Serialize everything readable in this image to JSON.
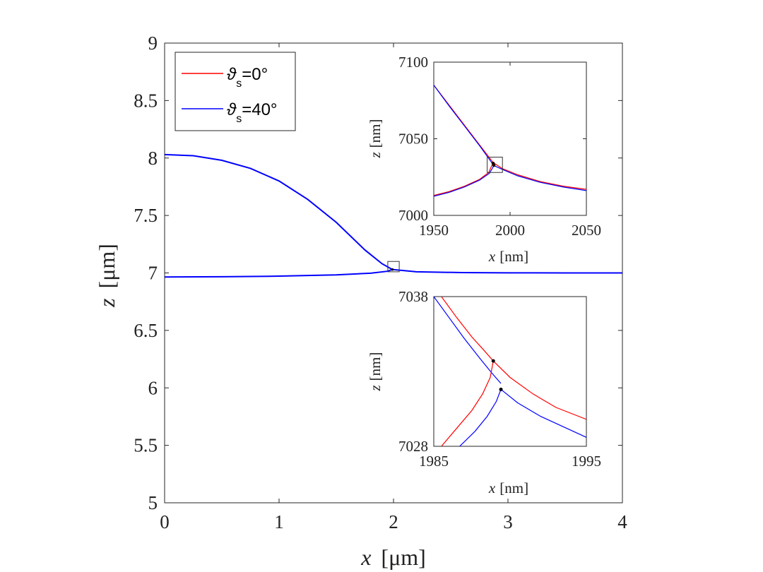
{
  "chart_data": [
    {
      "id": "main",
      "type": "line",
      "xlabel_var": "x",
      "xlabel_unit": "[μm]",
      "ylabel_var": "z",
      "ylabel_unit": "[μm]",
      "xlim": [
        0,
        4
      ],
      "ylim": [
        5,
        9
      ],
      "xticks": [
        "0",
        "1",
        "2",
        "3",
        "4"
      ],
      "yticks": [
        "5",
        "5.5",
        "6",
        "6.5",
        "7",
        "7.5",
        "8",
        "8.5",
        "9"
      ],
      "legend": {
        "placement": "top-left",
        "entries": [
          {
            "symbol": "ϑ",
            "sub": "s",
            "text": "=0°",
            "color": "#ff0000"
          },
          {
            "symbol": "ϑ",
            "sub": "s",
            "text": "=40°",
            "color": "#0000ff"
          }
        ]
      },
      "series": [
        {
          "name": "cap",
          "color": "#0000ff",
          "x": [
            0,
            0.25,
            0.5,
            0.75,
            1.0,
            1.25,
            1.5,
            1.75,
            1.9,
            1.99
          ],
          "y": [
            8.03,
            8.02,
            7.98,
            7.91,
            7.8,
            7.64,
            7.44,
            7.2,
            7.08,
            7.03
          ]
        },
        {
          "name": "base-left",
          "color": "#0000ff",
          "x": [
            0,
            0.5,
            1.0,
            1.5,
            1.8,
            1.95,
            1.99
          ],
          "y": [
            6.965,
            6.967,
            6.972,
            6.983,
            6.998,
            7.015,
            7.03
          ]
        },
        {
          "name": "base-right",
          "color": "#0000ff",
          "x": [
            1.99,
            2.2,
            2.6,
            3.0,
            3.5,
            4.0
          ],
          "y": [
            7.03,
            7.01,
            7.003,
            7.001,
            7.0,
            7.0
          ]
        }
      ],
      "box": {
        "x": [
          1.95,
          2.05
        ],
        "y": [
          7.01,
          7.1
        ]
      }
    },
    {
      "id": "inset1",
      "type": "line",
      "xlabel_var": "x",
      "xlabel_unit": "[nm]",
      "ylabel_var": "z",
      "ylabel_unit": "[nm]",
      "xlim": [
        1950,
        2050
      ],
      "ylim": [
        7000,
        7100
      ],
      "xticks": [
        "1950",
        "2000",
        "2050"
      ],
      "yticks": [
        "7000",
        "7050",
        "7100"
      ],
      "series": [
        {
          "name": "cap-0",
          "color": "#ff0000",
          "x": [
            1950,
            1960,
            1970,
            1980,
            1988.9
          ],
          "y": [
            7085,
            7072,
            7059,
            7046,
            7034.5
          ]
        },
        {
          "name": "cap-40",
          "color": "#0000ff",
          "x": [
            1950,
            1960,
            1970,
            1980,
            1989.4
          ],
          "y": [
            7085,
            7071.5,
            7058.5,
            7045.5,
            7032.5
          ]
        },
        {
          "name": "sub-right-0",
          "color": "#ff0000",
          "x": [
            1988.9,
            1995,
            2005,
            2020,
            2035,
            2050
          ],
          "y": [
            7034.5,
            7030.5,
            7026.5,
            7022,
            7019,
            7017
          ]
        },
        {
          "name": "sub-right-40",
          "color": "#0000ff",
          "x": [
            1989.4,
            1995,
            2005,
            2020,
            2035,
            2050
          ],
          "y": [
            7032.5,
            7030,
            7025.8,
            7021.5,
            7018.5,
            7016.2
          ]
        },
        {
          "name": "sub-left-0",
          "color": "#ff0000",
          "x": [
            1950,
            1960,
            1970,
            1980,
            1986,
            1988.9
          ],
          "y": [
            7013,
            7015.5,
            7019,
            7023.5,
            7028,
            7034.5
          ]
        },
        {
          "name": "sub-left-40",
          "color": "#0000ff",
          "x": [
            1950,
            1960,
            1970,
            1980,
            1986.5,
            1989.4
          ],
          "y": [
            7012.5,
            7015,
            7018.5,
            7023,
            7027.5,
            7032.5
          ]
        }
      ],
      "points": [
        {
          "x": 1988.9,
          "y": 7034.0
        },
        {
          "x": 1989.4,
          "y": 7032.7
        }
      ],
      "box": {
        "x": [
          1985,
          1995
        ],
        "y": [
          7028,
          7038
        ]
      }
    },
    {
      "id": "inset2",
      "type": "line",
      "xlabel_var": "x",
      "xlabel_unit": "[nm]",
      "ylabel_var": "z",
      "ylabel_unit": "[nm]",
      "xlim": [
        1985,
        1995
      ],
      "ylim": [
        7028,
        7038
      ],
      "xticks": [
        "1985",
        "1995"
      ],
      "yticks": [
        "7028",
        "7038"
      ],
      "series": [
        {
          "name": "cap-0",
          "color": "#ff0000",
          "x": [
            1985.5,
            1986.5,
            1987.5,
            1988.3,
            1988.9
          ],
          "y": [
            7038,
            7036.6,
            7035.3,
            7034.4,
            7033.7
          ]
        },
        {
          "name": "cap-40",
          "color": "#0000ff",
          "x": [
            1985,
            1986,
            1987,
            1988,
            1988.8,
            1989.4
          ],
          "y": [
            7038,
            7036.6,
            7035.2,
            7033.9,
            7032.9,
            7032.2
          ]
        },
        {
          "name": "sub-right-0",
          "color": "#ff0000",
          "x": [
            1988.9,
            1990,
            1991.5,
            1993,
            1995
          ],
          "y": [
            7033.7,
            7032.6,
            7031.5,
            7030.6,
            7029.8
          ]
        },
        {
          "name": "sub-right-40",
          "color": "#0000ff",
          "x": [
            1989.4,
            1990.5,
            1992,
            1993.5,
            1995
          ],
          "y": [
            7031.8,
            7030.9,
            7030.0,
            7029.3,
            7028.6
          ]
        },
        {
          "name": "sub-left-0",
          "color": "#ff0000",
          "x": [
            1985.5,
            1986.5,
            1987.5,
            1988.2,
            1988.7,
            1988.9
          ],
          "y": [
            7028,
            7029.2,
            7030.4,
            7031.5,
            7032.6,
            7033.7
          ]
        },
        {
          "name": "sub-left-40",
          "color": "#0000ff",
          "x": [
            1986.7,
            1987.7,
            1988.5,
            1989.1,
            1989.4
          ],
          "y": [
            7028,
            7029.0,
            7030.0,
            7031.0,
            7031.8
          ]
        }
      ],
      "points": [
        {
          "x": 1988.9,
          "y": 7033.7
        },
        {
          "x": 1989.4,
          "y": 7031.8
        }
      ]
    }
  ]
}
